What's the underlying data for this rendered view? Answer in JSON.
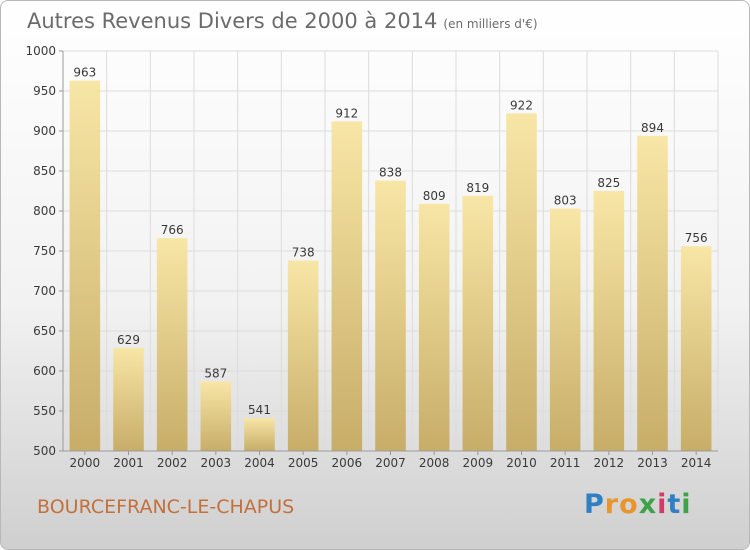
{
  "header": {
    "title": "Autres Revenus Divers de 2000 à 2014",
    "subtitle": "(en milliers d'€)"
  },
  "footer": {
    "commune": "BOURCEFRANC-LE-CHAPUS",
    "logo": "Proxiti"
  },
  "colors": {
    "bar_top": "#f8e6a6",
    "bar_bottom": "#c7ad68",
    "grid": "#dcdcdc",
    "axis_text": "#3a3a3a",
    "title": "#6b6b6b",
    "commune": "#c2703c"
  },
  "chart_data": {
    "type": "bar",
    "title": "Autres Revenus Divers de 2000 à 2014",
    "subtitle": "(en milliers d'€)",
    "xlabel": "",
    "ylabel": "",
    "ylim": [
      500,
      1000
    ],
    "yticks": [
      500,
      550,
      600,
      650,
      700,
      750,
      800,
      850,
      900,
      950,
      1000
    ],
    "grid": true,
    "legend": "none",
    "categories": [
      "2000",
      "2001",
      "2002",
      "2003",
      "2004",
      "2005",
      "2006",
      "2007",
      "2008",
      "2009",
      "2010",
      "2011",
      "2012",
      "2013",
      "2014"
    ],
    "values": [
      963,
      629,
      766,
      587,
      541,
      738,
      912,
      838,
      809,
      819,
      922,
      803,
      825,
      894,
      756
    ]
  }
}
